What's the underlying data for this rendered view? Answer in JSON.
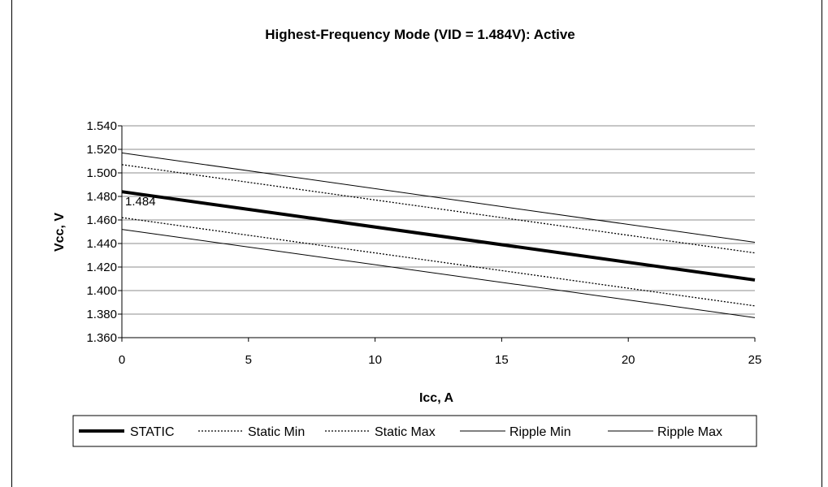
{
  "chart_data": {
    "type": "line",
    "title": "Highest-Frequency Mode (VID = 1.484V): Active",
    "xlabel": "Icc, A",
    "ylabel": "Vcc, V",
    "xlim": [
      0,
      25
    ],
    "ylim": [
      1.36,
      1.54
    ],
    "x_ticks": [
      "0",
      "5",
      "10",
      "15",
      "20",
      "25"
    ],
    "y_ticks": [
      "1.360",
      "1.380",
      "1.400",
      "1.420",
      "1.440",
      "1.460",
      "1.480",
      "1.500",
      "1.520",
      "1.540"
    ],
    "grid": "horizontal",
    "legend_position": "bottom",
    "annotation": "1.484",
    "x": [
      0,
      25
    ],
    "series": [
      {
        "name": "STATIC",
        "values": [
          1.484,
          1.409
        ],
        "color": "#000000",
        "style": "thick"
      },
      {
        "name": "Static Min",
        "values": [
          1.462,
          1.387
        ],
        "color": "#000000",
        "style": "dotted"
      },
      {
        "name": "Static Max",
        "values": [
          1.507,
          1.432
        ],
        "color": "#000000",
        "style": "dotted"
      },
      {
        "name": "Ripple Min",
        "values": [
          1.452,
          1.377
        ],
        "color": "#000000",
        "style": "thin"
      },
      {
        "name": "Ripple Max",
        "values": [
          1.517,
          1.441
        ],
        "color": "#000000",
        "style": "thin"
      }
    ]
  }
}
